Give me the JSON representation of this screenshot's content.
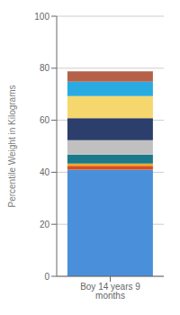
{
  "chart_data": {
    "type": "bar",
    "categories": [
      "Boy 14 years 9 months"
    ],
    "series": [
      {
        "color": "#4A8FD9",
        "values": [
          41.0
        ]
      },
      {
        "color": "#D94E1F",
        "values": [
          1.5
        ]
      },
      {
        "color": "#F5A623",
        "values": [
          0.8
        ]
      },
      {
        "color": "#1A7A8A",
        "values": [
          3.5
        ]
      },
      {
        "color": "#C0C0C0",
        "values": [
          5.5
        ]
      },
      {
        "color": "#2C3E6B",
        "values": [
          8.5
        ]
      },
      {
        "color": "#F5D76E",
        "values": [
          8.5
        ]
      },
      {
        "color": "#29ABE2",
        "values": [
          5.5
        ]
      },
      {
        "color": "#B5614A",
        "values": [
          4.0
        ]
      }
    ],
    "stacked": true,
    "ylabel": "Percentile Weight in Kilograms",
    "ylim": [
      0,
      100
    ],
    "yticks": [
      0,
      20,
      40,
      60,
      80,
      100
    ],
    "grid": true
  }
}
